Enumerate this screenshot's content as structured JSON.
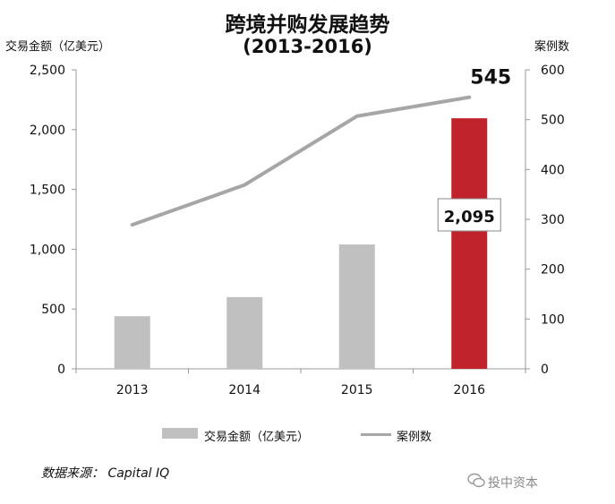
{
  "chart_data": {
    "type": "bar",
    "title": "跨境并购发展趋势",
    "subtitle": "(2013-2016)",
    "categories": [
      "2013",
      "2014",
      "2015",
      "2016"
    ],
    "series": [
      {
        "name": "交易金额（亿美元）",
        "kind": "bar",
        "axis": "left",
        "values": [
          440,
          600,
          1040,
          2095
        ],
        "colors": [
          "#c0c0c0",
          "#c0c0c0",
          "#c0c0c0",
          "#c0232c"
        ]
      },
      {
        "name": "案例数",
        "kind": "line",
        "axis": "right",
        "values": [
          289,
          369,
          507,
          545
        ],
        "color": "#a6a6a6"
      }
    ],
    "ylabel": "交易金额（亿美元）",
    "y2label": "案例数",
    "ylim": [
      0,
      2500
    ],
    "y2lim": [
      0,
      600
    ],
    "yticks": [
      "0",
      "500",
      "1,000",
      "1,500",
      "2,000",
      "2,500"
    ],
    "y2ticks": [
      "0",
      "100",
      "200",
      "300",
      "400",
      "500",
      "600"
    ],
    "annotations": {
      "bar_label": "2,095",
      "line_label": "545"
    },
    "legend_position": "bottom",
    "grid": false
  },
  "source_text": "数据来源： Capital IQ",
  "watermark_text": "投中资本"
}
